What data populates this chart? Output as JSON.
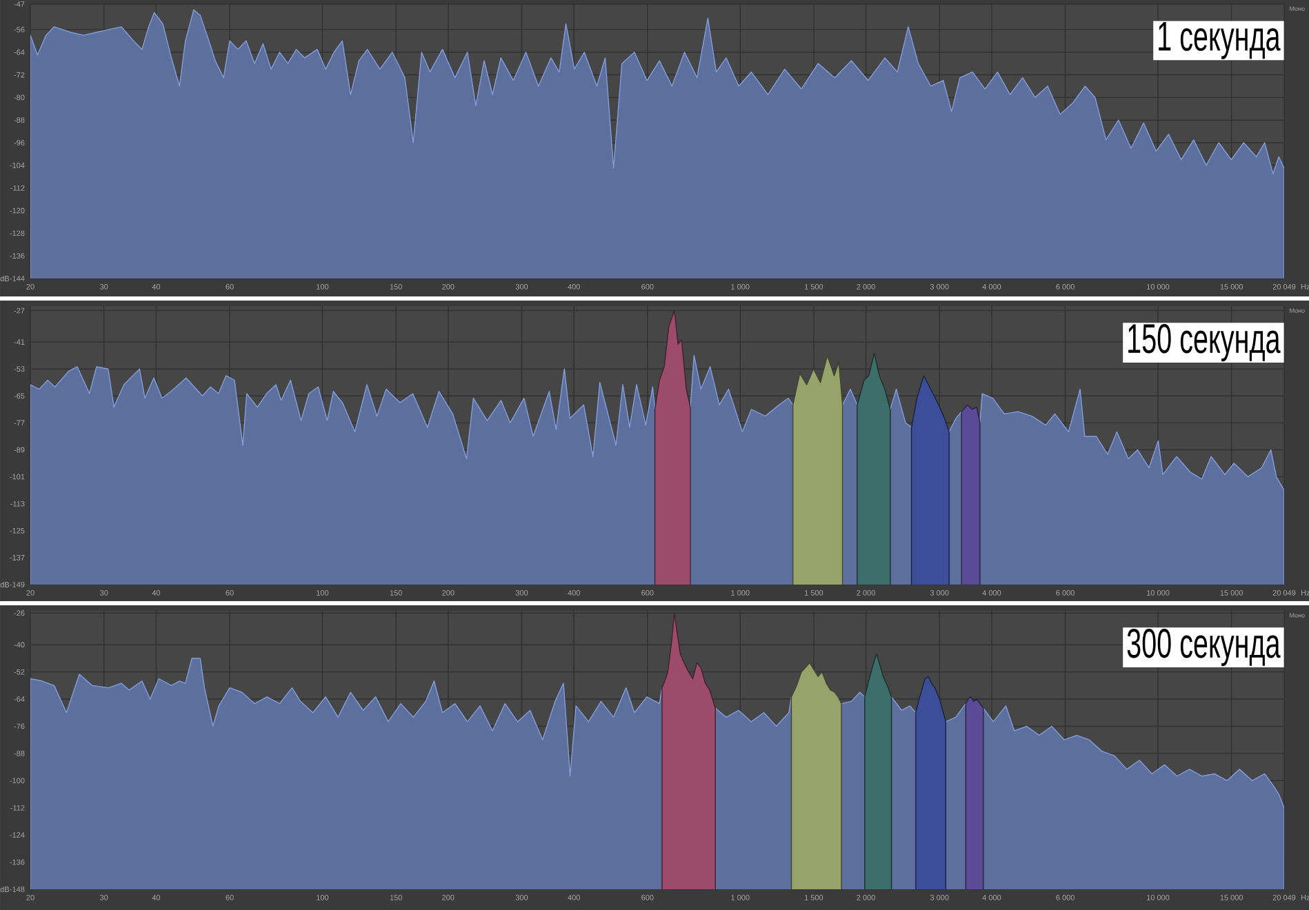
{
  "chart_data": [
    {
      "type": "area",
      "title": "1 секунда",
      "xlabel": "Hz",
      "ylabel": "dB",
      "annotations": [
        "Моно"
      ],
      "log": "x",
      "grid": true,
      "xlim": [
        20,
        20049
      ],
      "ylim": [
        -144,
        -47
      ],
      "xticks": [
        20,
        30,
        40,
        60,
        100,
        150,
        200,
        300,
        400,
        600,
        {
          "value": 1000,
          "label": "1 000"
        },
        {
          "value": 1500,
          "label": "1 500"
        },
        {
          "value": 2000,
          "label": "2 000"
        },
        {
          "value": 3000,
          "label": "3 000"
        },
        {
          "value": 4000,
          "label": "4 000"
        },
        {
          "value": 6000,
          "label": "6 000"
        },
        {
          "value": 10000,
          "label": "10 000"
        },
        {
          "value": 15000,
          "label": "15 000"
        },
        {
          "value": 20049,
          "label": "20 049"
        }
      ],
      "yticks": [
        -144,
        -136,
        -128,
        -120,
        -112,
        -104,
        -96,
        -88,
        -80,
        -72,
        -64,
        -56,
        -47
      ],
      "series": [
        {
          "color": "#5c6f9d",
          "x": [
            20,
            20.8,
            21.8,
            22.8,
            25.0,
            26.8,
            28.7,
            30.8,
            33.0,
            35.3,
            37.0,
            38.4,
            39.6,
            41.5,
            43.5,
            45.5,
            47.0,
            49.2,
            51.0,
            53.5,
            55.4,
            58.0,
            60.0,
            62.8,
            65.7,
            68.8,
            72.1,
            75.4,
            79.0,
            82.7,
            86.6,
            90.7,
            97.2,
            101.8,
            106.6,
            111.6,
            116.8,
            122.3,
            128.1,
            137.3,
            147.0,
            157.5,
            165.0,
            172.8,
            180.9,
            193.8,
            207.7,
            222.4,
            232.9,
            243.9,
            255.4,
            267.4,
            286.5,
            307.0,
            328.9,
            352.4,
            369.0,
            382.8,
            400.9,
            423.6,
            453.8,
            475.2,
            497.6,
            521.1,
            558.3,
            598.2,
            640.9,
            686.7,
            735.7,
            788.3,
            836.9,
            876.2,
            925.9,
            992.2,
            1063,
            1165,
            1278,
            1401,
            1536,
            1684,
            1846,
            2024,
            2220,
            2378,
            2525,
            2668,
            2859,
            3063,
            3207,
            3358,
            3597,
            3855,
            4130,
            4425,
            4742,
            5080,
            5443,
            5833,
            6247,
            6694,
            7073,
            7510,
            8046,
            8622,
            9239,
            9897,
            10605,
            11364,
            12172,
            13045,
            13977,
            14977,
            16043,
            17193,
            18003,
            18847,
            19465,
            20049
          ],
          "values": [
            -58,
            -65,
            -58,
            -55,
            -57,
            -58,
            -57,
            -56,
            -55,
            -60,
            -63,
            -55,
            -50,
            -54,
            -66,
            -76,
            -60,
            -49,
            -51,
            -60,
            -67,
            -73,
            -60,
            -63,
            -60,
            -68,
            -61,
            -70,
            -64,
            -68,
            -63,
            -66,
            -63,
            -70,
            -64,
            -60,
            -79,
            -67,
            -63,
            -70,
            -64,
            -73,
            -96,
            -64,
            -71,
            -63,
            -73,
            -64,
            -83,
            -67,
            -79,
            -66,
            -74,
            -64,
            -76,
            -66,
            -71,
            -54,
            -70,
            -64,
            -76,
            -66,
            -105,
            -68,
            -64,
            -74,
            -67,
            -76,
            -64,
            -73,
            -52,
            -71,
            -66,
            -76,
            -71,
            -79,
            -70,
            -77,
            -68,
            -73,
            -67,
            -74,
            -66,
            -71,
            -55,
            -68,
            -76,
            -74,
            -85,
            -73,
            -71,
            -77,
            -71,
            -79,
            -73,
            -80,
            -76,
            -86,
            -82,
            -76,
            -80,
            -95,
            -88,
            -98,
            -89,
            -99,
            -93,
            -102,
            -95,
            -104,
            -96,
            -102,
            -96,
            -101,
            -96,
            -107,
            -101,
            -105
          ]
        }
      ]
    },
    {
      "type": "area",
      "title": "150 секунда",
      "xlabel": "Hz",
      "ylabel": "dB",
      "annotations": [
        "Моно"
      ],
      "log": "x",
      "grid": true,
      "xlim": [
        20,
        20049
      ],
      "ylim": [
        -149,
        -25
      ],
      "xticks": [
        20,
        30,
        40,
        60,
        100,
        150,
        200,
        300,
        400,
        600,
        {
          "value": 1000,
          "label": "1 000"
        },
        {
          "value": 1500,
          "label": "1 500"
        },
        {
          "value": 2000,
          "label": "2 000"
        },
        {
          "value": 3000,
          "label": "3 000"
        },
        {
          "value": 4000,
          "label": "4 000"
        },
        {
          "value": 6000,
          "label": "6 000"
        },
        {
          "value": 10000,
          "label": "10 000"
        },
        {
          "value": 15000,
          "label": "15 000"
        },
        {
          "value": 20049,
          "label": "20 049"
        }
      ],
      "yticks": [
        -149,
        -137,
        -125,
        -113,
        -101,
        -89,
        -77,
        -65,
        -53,
        -41,
        -27
      ],
      "series": [
        {
          "color": "#5c6f9d",
          "x": [
            20,
            21.0,
            22.0,
            22.9,
            24.7,
            25.9,
            27.7,
            28.8,
            30.7,
            31.7,
            33.5,
            36.5,
            37.6,
            39.5,
            41.3,
            43.4,
            47.2,
            51.6,
            54.0,
            56.4,
            58.8,
            61.6,
            64.5,
            65.9,
            69.9,
            73.5,
            77.4,
            79.7,
            83.9,
            88.9,
            92.8,
            97.7,
            102.7,
            106.2,
            111.7,
            119.6,
            127.8,
            135.1,
            142.1,
            153.3,
            164.6,
            178.4,
            190.1,
            205.1,
            221.3,
            229.8,
            248.0,
            267.6,
            281.5,
            303.8,
            319.5,
            349.1,
            362.6,
            379.5,
            391.3,
            422.2,
            444.2,
            461.4,
            504.3,
            523.6,
            543.9,
            564.9,
            594.3,
            617.3,
            625,
            760,
            775.5,
            805.4,
            847.4,
            891.6,
            937.8,
            1012,
            1064,
            1148,
            1239,
            1304,
            1337,
            1758,
            1835,
            1906,
            2287,
            2364,
            2487,
            2570,
            3163,
            3285,
            3387,
            3748,
            3796,
            4024,
            4287,
            4626,
            4991,
            5384,
            5664,
            6110,
            6512,
            6678,
            7115,
            7580,
            7972,
            8495,
            8937,
            9520,
            10014,
            10270,
            11082,
            11958,
            12742,
            13402,
            14460,
            15209,
            16411,
            17708,
            18627,
            19201,
            20049
          ],
          "values": [
            -60,
            -62,
            -58,
            -61,
            -54,
            -52,
            -64,
            -52,
            -53,
            -70,
            -60,
            -53,
            -66,
            -57,
            -66,
            -63,
            -57,
            -65,
            -61,
            -64,
            -56,
            -58,
            -87,
            -64,
            -70,
            -64,
            -60,
            -67,
            -58,
            -76,
            -64,
            -61,
            -76,
            -63,
            -68,
            -81,
            -60,
            -74,
            -62,
            -68,
            -64,
            -79,
            -63,
            -73,
            -93,
            -66,
            -76,
            -67,
            -77,
            -66,
            -83,
            -63,
            -80,
            -53,
            -75,
            -69,
            -92,
            -59,
            -87,
            -60,
            -79,
            -60,
            -78,
            -61,
            -71,
            -70,
            -47,
            -62,
            -52,
            -69,
            -62,
            -81,
            -71,
            -74,
            -69,
            -66,
            -69,
            -69,
            -62,
            -69,
            -71,
            -62,
            -77,
            -79,
            -81,
            -75,
            -72,
            -77,
            -64,
            -66,
            -73,
            -72,
            -74,
            -78,
            -73,
            -81,
            -62,
            -83,
            -83,
            -91,
            -81,
            -93,
            -89,
            -97,
            -85,
            -100,
            -92,
            -99,
            -102,
            -92,
            -100,
            -95,
            -101,
            -97,
            -89,
            -101,
            -107
          ]
        },
        {
          "color": "#9c4b6b",
          "x": [
            625,
            641,
            658,
            675,
            696,
            710,
            724,
            743,
            760
          ],
          "values": [
            -71,
            -58,
            -52,
            -34,
            -27,
            -42,
            -40,
            -62,
            -70
          ]
        },
        {
          "color": "#98a26b",
          "x": [
            1337,
            1389,
            1443,
            1498,
            1556,
            1617,
            1679,
            1722,
            1758
          ],
          "values": [
            -69,
            -55,
            -60,
            -53,
            -59,
            -47,
            -56,
            -50,
            -69
          ]
        },
        {
          "color": "#3e6e69",
          "x": [
            1906,
            1980,
            2031,
            2094,
            2153,
            2219,
            2287
          ],
          "values": [
            -69,
            -58,
            -56,
            -46,
            -56,
            -62,
            -71
          ]
        },
        {
          "color": "#3d4e98",
          "x": [
            2570,
            2649,
            2751,
            2858,
            2969,
            3084,
            3163
          ],
          "values": [
            -79,
            -66,
            -56,
            -62,
            -68,
            -75,
            -81
          ]
        },
        {
          "color": "#5b4b97",
          "x": [
            3387,
            3500,
            3590,
            3682,
            3748
          ],
          "values": [
            -72,
            -69,
            -71,
            -70,
            -77
          ]
        }
      ]
    },
    {
      "type": "area",
      "title": "300 секунда",
      "xlabel": "Hz",
      "ylabel": "dB",
      "annotations": [
        "Моно"
      ],
      "log": "x",
      "grid": true,
      "xlim": [
        20,
        20049
      ],
      "ylim": [
        -148,
        -25
      ],
      "xticks": [
        20,
        30,
        40,
        60,
        100,
        150,
        200,
        300,
        400,
        600,
        {
          "value": 1000,
          "label": "1 000"
        },
        {
          "value": 1500,
          "label": "1 500"
        },
        {
          "value": 2000,
          "label": "2 000"
        },
        {
          "value": 3000,
          "label": "3 000"
        },
        {
          "value": 4000,
          "label": "4 000"
        },
        {
          "value": 6000,
          "label": "6 000"
        },
        {
          "value": 10000,
          "label": "10 000"
        },
        {
          "value": 15000,
          "label": "15 000"
        },
        {
          "value": 20049,
          "label": "20 049"
        }
      ],
      "yticks": [
        -148,
        -136,
        -124,
        -112,
        -100,
        -88,
        -76,
        -64,
        -52,
        -40,
        -26
      ],
      "series": [
        {
          "color": "#5c6f9d",
          "x": [
            20,
            21.3,
            22.8,
            24.4,
            26.2,
            28.1,
            30.8,
            33.0,
            34.5,
            37.0,
            38.7,
            40.6,
            43.5,
            45.5,
            47.0,
            48.7,
            51.0,
            52.2,
            54.7,
            56.5,
            60.0,
            64.2,
            68.8,
            73.7,
            79.0,
            84.6,
            88.6,
            94.9,
            101.8,
            109.0,
            116.8,
            125.2,
            134.1,
            143.7,
            154.0,
            165.0,
            176.8,
            185.1,
            193.8,
            207.7,
            222.4,
            238.4,
            255.4,
            273.6,
            293.2,
            314.2,
            336.5,
            360.6,
            377.6,
            391.7,
            404.6,
            433.5,
            464.4,
            497.6,
            533.2,
            558.3,
            598.2,
            640.9,
            650,
            872,
            925.9,
            992.2,
            1063,
            1139,
            1220,
            1308,
            1326,
            1747,
            1846,
            1933,
            1987,
            2302,
            2434,
            2548,
            2632,
            3105,
            3281,
            3467,
            3819,
            4036,
            4325,
            4529,
            4852,
            5198,
            5569,
            5966,
            6392,
            6848,
            7338,
            7863,
            8425,
            9027,
            9672,
            10364,
            11105,
            11896,
            12747,
            13657,
            14635,
            15679,
            16801,
            18003,
            18847,
            19465,
            20049
          ],
          "values": [
            -55,
            -56,
            -58,
            -70,
            -53,
            -58,
            -59,
            -57,
            -60,
            -56,
            -64,
            -55,
            -58,
            -56,
            -57,
            -46,
            -46,
            -59,
            -76,
            -67,
            -59,
            -61,
            -66,
            -63,
            -66,
            -59,
            -65,
            -70,
            -63,
            -72,
            -61,
            -69,
            -63,
            -74,
            -66,
            -72,
            -65,
            -56,
            -70,
            -66,
            -74,
            -67,
            -78,
            -66,
            -74,
            -69,
            -82,
            -65,
            -57,
            -98,
            -67,
            -74,
            -65,
            -72,
            -59,
            -70,
            -63,
            -66,
            -59,
            -68,
            -72,
            -69,
            -74,
            -70,
            -76,
            -70,
            -63,
            -66,
            -65,
            -61,
            -63,
            -63,
            -69,
            -67,
            -70,
            -74,
            -72,
            -66,
            -68,
            -74,
            -67,
            -78,
            -76,
            -80,
            -76,
            -82,
            -80,
            -82,
            -87,
            -89,
            -95,
            -91,
            -97,
            -93,
            -98,
            -95,
            -98,
            -97,
            -100,
            -95,
            -100,
            -97,
            -102,
            -106,
            -112
          ]
        },
        {
          "color": "#9c4b6b",
          "x": [
            650,
            660,
            671,
            684,
            696,
            707,
            719,
            730,
            753,
            770,
            788,
            805,
            825,
            845,
            872
          ],
          "values": [
            -59,
            -56,
            -52,
            -40,
            -26,
            -35,
            -44,
            -47,
            -52,
            -55,
            -48,
            -50,
            -57,
            -60,
            -68
          ]
        },
        {
          "color": "#98a26b",
          "x": [
            1326,
            1365,
            1401,
            1467,
            1500,
            1536,
            1570,
            1608,
            1645,
            1684,
            1715,
            1747
          ],
          "values": [
            -63,
            -58,
            -52,
            -48,
            -51,
            -54,
            -52,
            -57,
            -60,
            -61,
            -63,
            -66
          ]
        },
        {
          "color": "#3e6e69",
          "x": [
            1987,
            2030,
            2072,
            2120,
            2160,
            2199,
            2250,
            2302
          ],
          "values": [
            -63,
            -56,
            -50,
            -44,
            -49,
            -54,
            -58,
            -63
          ]
        },
        {
          "color": "#3d4e98",
          "x": [
            2632,
            2680,
            2730,
            2770,
            2819,
            2870,
            2925,
            3000,
            3105
          ],
          "values": [
            -70,
            -64,
            -59,
            -55,
            -54,
            -57,
            -59,
            -64,
            -74
          ]
        },
        {
          "color": "#5b4b97",
          "x": [
            3467,
            3515,
            3565,
            3620,
            3681,
            3750,
            3819
          ],
          "values": [
            -66,
            -64,
            -63,
            -65,
            -64,
            -66,
            -68
          ]
        }
      ]
    }
  ]
}
